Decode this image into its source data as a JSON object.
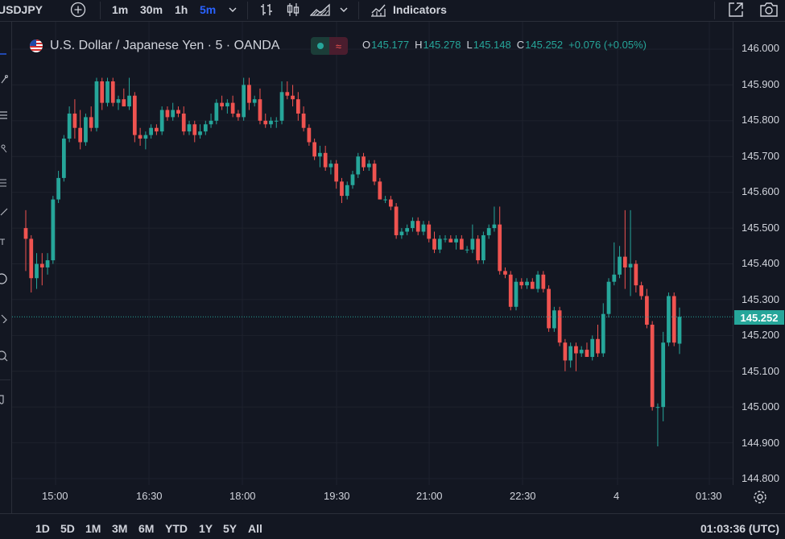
{
  "toolbar": {
    "symbol": "USDJPY",
    "timeframes": [
      "1m",
      "30m",
      "1h",
      "5m"
    ],
    "active_timeframe": "5m",
    "indicators_label": "Indicators"
  },
  "legend": {
    "title": "U.S. Dollar / Japanese Yen · 5 · OANDA",
    "open_key": "O",
    "open": "145.177",
    "high_key": "H",
    "high": "145.278",
    "low_key": "L",
    "low": "145.148",
    "close_key": "C",
    "close": "145.252",
    "change": "+0.076 (+0.05%)"
  },
  "price_axis": {
    "labels": [
      "146.000",
      "145.900",
      "145.800",
      "145.700",
      "145.600",
      "145.500",
      "145.400",
      "145.300",
      "145.200",
      "145.100",
      "145.000",
      "144.900",
      "144.800"
    ],
    "last_price": "145.252"
  },
  "time_axis": {
    "labels": [
      "15:00",
      "16:30",
      "18:00",
      "19:30",
      "21:00",
      "22:30",
      "4",
      "01:30"
    ]
  },
  "bottom": {
    "ranges": [
      "1D",
      "5D",
      "1M",
      "3M",
      "6M",
      "YTD",
      "1Y",
      "5Y",
      "All"
    ],
    "clock": "01:03:36 (UTC)"
  },
  "colors": {
    "up": "#26a69a",
    "down": "#ef5350",
    "background": "#131722",
    "grid": "#1e222d",
    "accent": "#2962ff"
  },
  "chart_data": {
    "type": "candlestick",
    "ylim": [
      144.78,
      146.02
    ],
    "x_ticks": [
      "15:00",
      "16:30",
      "18:00",
      "19:30",
      "21:00",
      "22:30",
      "4",
      "01:30"
    ],
    "candles": [
      {
        "o": 145.5,
        "h": 145.55,
        "l": 145.38,
        "c": 145.47
      },
      {
        "o": 145.47,
        "h": 145.48,
        "l": 145.32,
        "c": 145.36
      },
      {
        "o": 145.36,
        "h": 145.43,
        "l": 145.33,
        "c": 145.4
      },
      {
        "o": 145.4,
        "h": 145.43,
        "l": 145.34,
        "c": 145.39
      },
      {
        "o": 145.39,
        "h": 145.43,
        "l": 145.37,
        "c": 145.41
      },
      {
        "o": 145.41,
        "h": 145.59,
        "l": 145.4,
        "c": 145.58
      },
      {
        "o": 145.58,
        "h": 145.66,
        "l": 145.57,
        "c": 145.64
      },
      {
        "o": 145.64,
        "h": 145.76,
        "l": 145.63,
        "c": 145.75
      },
      {
        "o": 145.75,
        "h": 145.84,
        "l": 145.74,
        "c": 145.82
      },
      {
        "o": 145.82,
        "h": 145.86,
        "l": 145.75,
        "c": 145.78
      },
      {
        "o": 145.78,
        "h": 145.83,
        "l": 145.72,
        "c": 145.74
      },
      {
        "o": 145.74,
        "h": 145.82,
        "l": 145.73,
        "c": 145.81
      },
      {
        "o": 145.81,
        "h": 145.84,
        "l": 145.77,
        "c": 145.78
      },
      {
        "o": 145.78,
        "h": 145.92,
        "l": 145.77,
        "c": 145.91
      },
      {
        "o": 145.91,
        "h": 145.92,
        "l": 145.83,
        "c": 145.85
      },
      {
        "o": 145.85,
        "h": 145.92,
        "l": 145.84,
        "c": 145.91
      },
      {
        "o": 145.91,
        "h": 145.92,
        "l": 145.84,
        "c": 145.85
      },
      {
        "o": 145.85,
        "h": 145.87,
        "l": 145.83,
        "c": 145.86
      },
      {
        "o": 145.86,
        "h": 145.89,
        "l": 145.84,
        "c": 145.84
      },
      {
        "o": 145.84,
        "h": 145.92,
        "l": 145.83,
        "c": 145.87
      },
      {
        "o": 145.87,
        "h": 145.88,
        "l": 145.74,
        "c": 145.76
      },
      {
        "o": 145.76,
        "h": 145.78,
        "l": 145.73,
        "c": 145.75
      },
      {
        "o": 145.75,
        "h": 145.77,
        "l": 145.72,
        "c": 145.76
      },
      {
        "o": 145.76,
        "h": 145.79,
        "l": 145.75,
        "c": 145.78
      },
      {
        "o": 145.78,
        "h": 145.79,
        "l": 145.76,
        "c": 145.77
      },
      {
        "o": 145.77,
        "h": 145.84,
        "l": 145.76,
        "c": 145.83
      },
      {
        "o": 145.83,
        "h": 145.84,
        "l": 145.8,
        "c": 145.81
      },
      {
        "o": 145.81,
        "h": 145.85,
        "l": 145.8,
        "c": 145.83
      },
      {
        "o": 145.83,
        "h": 145.84,
        "l": 145.81,
        "c": 145.82
      },
      {
        "o": 145.82,
        "h": 145.84,
        "l": 145.76,
        "c": 145.77
      },
      {
        "o": 145.77,
        "h": 145.8,
        "l": 145.76,
        "c": 145.79
      },
      {
        "o": 145.79,
        "h": 145.8,
        "l": 145.74,
        "c": 145.76
      },
      {
        "o": 145.76,
        "h": 145.79,
        "l": 145.75,
        "c": 145.77
      },
      {
        "o": 145.77,
        "h": 145.8,
        "l": 145.76,
        "c": 145.79
      },
      {
        "o": 145.79,
        "h": 145.82,
        "l": 145.78,
        "c": 145.8
      },
      {
        "o": 145.8,
        "h": 145.86,
        "l": 145.79,
        "c": 145.85
      },
      {
        "o": 145.85,
        "h": 145.87,
        "l": 145.83,
        "c": 145.84
      },
      {
        "o": 145.84,
        "h": 145.86,
        "l": 145.82,
        "c": 145.85
      },
      {
        "o": 145.85,
        "h": 145.87,
        "l": 145.81,
        "c": 145.82
      },
      {
        "o": 145.82,
        "h": 145.83,
        "l": 145.8,
        "c": 145.81
      },
      {
        "o": 145.81,
        "h": 145.92,
        "l": 145.8,
        "c": 145.9
      },
      {
        "o": 145.9,
        "h": 145.92,
        "l": 145.83,
        "c": 145.85
      },
      {
        "o": 145.85,
        "h": 145.87,
        "l": 145.84,
        "c": 145.86
      },
      {
        "o": 145.86,
        "h": 145.89,
        "l": 145.79,
        "c": 145.8
      },
      {
        "o": 145.8,
        "h": 145.82,
        "l": 145.78,
        "c": 145.79
      },
      {
        "o": 145.79,
        "h": 145.81,
        "l": 145.78,
        "c": 145.8
      },
      {
        "o": 145.8,
        "h": 145.81,
        "l": 145.78,
        "c": 145.8
      },
      {
        "o": 145.8,
        "h": 145.91,
        "l": 145.79,
        "c": 145.88
      },
      {
        "o": 145.88,
        "h": 145.91,
        "l": 145.86,
        "c": 145.87
      },
      {
        "o": 145.87,
        "h": 145.9,
        "l": 145.84,
        "c": 145.86
      },
      {
        "o": 145.86,
        "h": 145.88,
        "l": 145.8,
        "c": 145.82
      },
      {
        "o": 145.82,
        "h": 145.84,
        "l": 145.77,
        "c": 145.78
      },
      {
        "o": 145.78,
        "h": 145.79,
        "l": 145.73,
        "c": 145.74
      },
      {
        "o": 145.74,
        "h": 145.75,
        "l": 145.69,
        "c": 145.7
      },
      {
        "o": 145.7,
        "h": 145.73,
        "l": 145.67,
        "c": 145.71
      },
      {
        "o": 145.71,
        "h": 145.73,
        "l": 145.66,
        "c": 145.67
      },
      {
        "o": 145.67,
        "h": 145.69,
        "l": 145.65,
        "c": 145.68
      },
      {
        "o": 145.68,
        "h": 145.69,
        "l": 145.61,
        "c": 145.63
      },
      {
        "o": 145.63,
        "h": 145.64,
        "l": 145.57,
        "c": 145.59
      },
      {
        "o": 145.59,
        "h": 145.63,
        "l": 145.58,
        "c": 145.62
      },
      {
        "o": 145.62,
        "h": 145.66,
        "l": 145.61,
        "c": 145.65
      },
      {
        "o": 145.65,
        "h": 145.71,
        "l": 145.64,
        "c": 145.7
      },
      {
        "o": 145.7,
        "h": 145.71,
        "l": 145.66,
        "c": 145.67
      },
      {
        "o": 145.67,
        "h": 145.69,
        "l": 145.66,
        "c": 145.68
      },
      {
        "o": 145.68,
        "h": 145.69,
        "l": 145.62,
        "c": 145.63
      },
      {
        "o": 145.63,
        "h": 145.64,
        "l": 145.58,
        "c": 145.58
      },
      {
        "o": 145.58,
        "h": 145.59,
        "l": 145.57,
        "c": 145.58
      },
      {
        "o": 145.58,
        "h": 145.59,
        "l": 145.55,
        "c": 145.56
      },
      {
        "o": 145.56,
        "h": 145.57,
        "l": 145.47,
        "c": 145.48
      },
      {
        "o": 145.48,
        "h": 145.5,
        "l": 145.47,
        "c": 145.49
      },
      {
        "o": 145.49,
        "h": 145.51,
        "l": 145.48,
        "c": 145.5
      },
      {
        "o": 145.5,
        "h": 145.53,
        "l": 145.49,
        "c": 145.52
      },
      {
        "o": 145.52,
        "h": 145.53,
        "l": 145.48,
        "c": 145.49
      },
      {
        "o": 145.49,
        "h": 145.52,
        "l": 145.48,
        "c": 145.51
      },
      {
        "o": 145.51,
        "h": 145.52,
        "l": 145.46,
        "c": 145.47
      },
      {
        "o": 145.47,
        "h": 145.49,
        "l": 145.43,
        "c": 145.44
      },
      {
        "o": 145.44,
        "h": 145.48,
        "l": 145.43,
        "c": 145.47
      },
      {
        "o": 145.47,
        "h": 145.48,
        "l": 145.46,
        "c": 145.47
      },
      {
        "o": 145.47,
        "h": 145.48,
        "l": 145.46,
        "c": 145.46
      },
      {
        "o": 145.46,
        "h": 145.48,
        "l": 145.44,
        "c": 145.47
      },
      {
        "o": 145.47,
        "h": 145.48,
        "l": 145.44,
        "c": 145.44
      },
      {
        "o": 145.44,
        "h": 145.45,
        "l": 145.43,
        "c": 145.44
      },
      {
        "o": 145.44,
        "h": 145.51,
        "l": 145.43,
        "c": 145.47
      },
      {
        "o": 145.47,
        "h": 145.48,
        "l": 145.4,
        "c": 145.41
      },
      {
        "o": 145.41,
        "h": 145.49,
        "l": 145.4,
        "c": 145.48
      },
      {
        "o": 145.48,
        "h": 145.51,
        "l": 145.47,
        "c": 145.5
      },
      {
        "o": 145.5,
        "h": 145.56,
        "l": 145.49,
        "c": 145.51
      },
      {
        "o": 145.51,
        "h": 145.56,
        "l": 145.37,
        "c": 145.38
      },
      {
        "o": 145.38,
        "h": 145.39,
        "l": 145.36,
        "c": 145.37
      },
      {
        "o": 145.37,
        "h": 145.38,
        "l": 145.27,
        "c": 145.28
      },
      {
        "o": 145.28,
        "h": 145.36,
        "l": 145.27,
        "c": 145.35
      },
      {
        "o": 145.35,
        "h": 145.36,
        "l": 145.33,
        "c": 145.34
      },
      {
        "o": 145.34,
        "h": 145.36,
        "l": 145.33,
        "c": 145.35
      },
      {
        "o": 145.35,
        "h": 145.36,
        "l": 145.33,
        "c": 145.33
      },
      {
        "o": 145.33,
        "h": 145.38,
        "l": 145.32,
        "c": 145.37
      },
      {
        "o": 145.37,
        "h": 145.38,
        "l": 145.32,
        "c": 145.33
      },
      {
        "o": 145.33,
        "h": 145.34,
        "l": 145.21,
        "c": 145.22
      },
      {
        "o": 145.22,
        "h": 145.28,
        "l": 145.21,
        "c": 145.27
      },
      {
        "o": 145.27,
        "h": 145.28,
        "l": 145.17,
        "c": 145.18
      },
      {
        "o": 145.18,
        "h": 145.19,
        "l": 145.1,
        "c": 145.13
      },
      {
        "o": 145.13,
        "h": 145.18,
        "l": 145.11,
        "c": 145.17
      },
      {
        "o": 145.17,
        "h": 145.18,
        "l": 145.1,
        "c": 145.15
      },
      {
        "o": 145.15,
        "h": 145.17,
        "l": 145.14,
        "c": 145.16
      },
      {
        "o": 145.16,
        "h": 145.18,
        "l": 145.14,
        "c": 145.14
      },
      {
        "o": 145.14,
        "h": 145.2,
        "l": 145.13,
        "c": 145.19
      },
      {
        "o": 145.19,
        "h": 145.23,
        "l": 145.14,
        "c": 145.15
      },
      {
        "o": 145.15,
        "h": 145.29,
        "l": 145.14,
        "c": 145.26
      },
      {
        "o": 145.26,
        "h": 145.36,
        "l": 145.25,
        "c": 145.35
      },
      {
        "o": 145.35,
        "h": 145.46,
        "l": 145.34,
        "c": 145.37
      },
      {
        "o": 145.37,
        "h": 145.45,
        "l": 145.36,
        "c": 145.42
      },
      {
        "o": 145.42,
        "h": 145.55,
        "l": 145.33,
        "c": 145.39
      },
      {
        "o": 145.39,
        "h": 145.55,
        "l": 145.31,
        "c": 145.4
      },
      {
        "o": 145.4,
        "h": 145.41,
        "l": 145.32,
        "c": 145.34
      },
      {
        "o": 145.34,
        "h": 145.35,
        "l": 145.3,
        "c": 145.31
      },
      {
        "o": 145.31,
        "h": 145.33,
        "l": 145.22,
        "c": 145.23
      },
      {
        "o": 145.23,
        "h": 145.24,
        "l": 144.99,
        "c": 145.0
      },
      {
        "o": 145.0,
        "h": 145.01,
        "l": 144.89,
        "c": 145.0
      },
      {
        "o": 145.0,
        "h": 145.21,
        "l": 144.96,
        "c": 145.18
      },
      {
        "o": 145.18,
        "h": 145.32,
        "l": 145.17,
        "c": 145.31
      },
      {
        "o": 145.31,
        "h": 145.32,
        "l": 145.17,
        "c": 145.18
      },
      {
        "o": 145.177,
        "h": 145.278,
        "l": 145.148,
        "c": 145.252
      }
    ]
  }
}
